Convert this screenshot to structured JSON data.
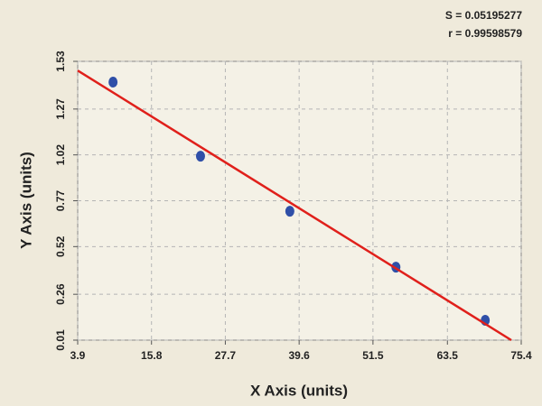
{
  "chart_data": {
    "type": "scatter",
    "annotations": [
      "S = 0.05195277",
      "r = 0.99598579"
    ],
    "x_label": "X Axis (units)",
    "y_label": "Y Axis (units)",
    "xlim": [
      3.9,
      75.4
    ],
    "xticks": [
      3.9,
      15.8,
      27.7,
      39.6,
      51.5,
      63.5,
      75.4
    ],
    "ylim": [
      0.01,
      1.53
    ],
    "yticks": [
      0.01,
      0.26,
      0.52,
      0.77,
      1.02,
      1.27,
      1.53
    ],
    "grid": true,
    "series": [
      {
        "kind": "points",
        "color": "#2f4fa8",
        "x": [
          9.6,
          23.7,
          38.1,
          55.2,
          69.6
        ],
        "values": [
          1.417,
          1.013,
          0.713,
          0.408,
          0.118
        ]
      },
      {
        "kind": "line",
        "color": "#e0201b",
        "x": [
          3.9,
          73.8
        ],
        "values": [
          1.48,
          0.01
        ]
      }
    ]
  }
}
